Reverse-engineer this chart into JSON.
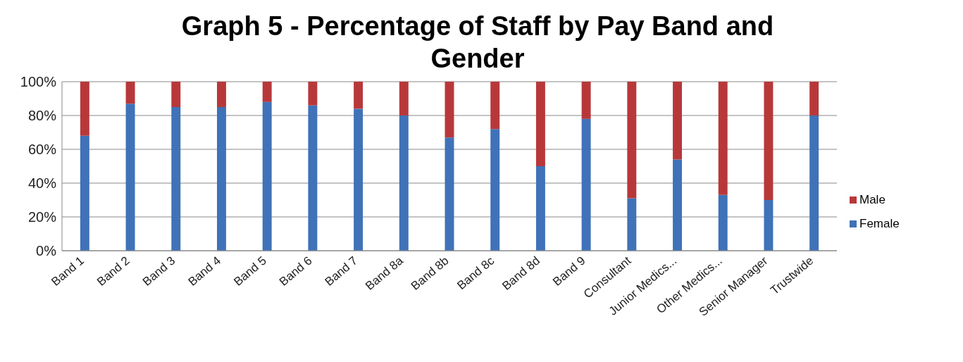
{
  "chart_data": {
    "type": "bar",
    "title": "Graph 5 - Percentage of Staff by Pay Band and Gender",
    "categories": [
      "Band 1",
      "Band 2",
      "Band 3",
      "Band 4",
      "Band 5",
      "Band 6",
      "Band 7",
      "Band 8a",
      "Band 8b",
      "Band 8c",
      "Band 8d",
      "Band 9",
      "Consultant",
      "Junior Medics...",
      "Other Medics...",
      "Senior Manager",
      "Trustwide"
    ],
    "series": [
      {
        "name": "Female",
        "color": "#3f72b8",
        "values": [
          68,
          87,
          85,
          85,
          88,
          86,
          84,
          80,
          67,
          72,
          50,
          78,
          31,
          54,
          33,
          30,
          80
        ]
      },
      {
        "name": "Male",
        "color": "#b8383a",
        "values": [
          32,
          13,
          15,
          15,
          12,
          14,
          16,
          20,
          33,
          28,
          50,
          22,
          69,
          46,
          67,
          70,
          20
        ]
      }
    ],
    "stacked": true,
    "ylim": [
      0,
      100
    ],
    "yticks": [
      {
        "value": 0,
        "label": "0%"
      },
      {
        "value": 20,
        "label": "20%"
      },
      {
        "value": 40,
        "label": "40%"
      },
      {
        "value": 60,
        "label": "60%"
      },
      {
        "value": 80,
        "label": "80%"
      },
      {
        "value": 100,
        "label": "100%"
      }
    ],
    "grid": "y",
    "legend": "right"
  }
}
